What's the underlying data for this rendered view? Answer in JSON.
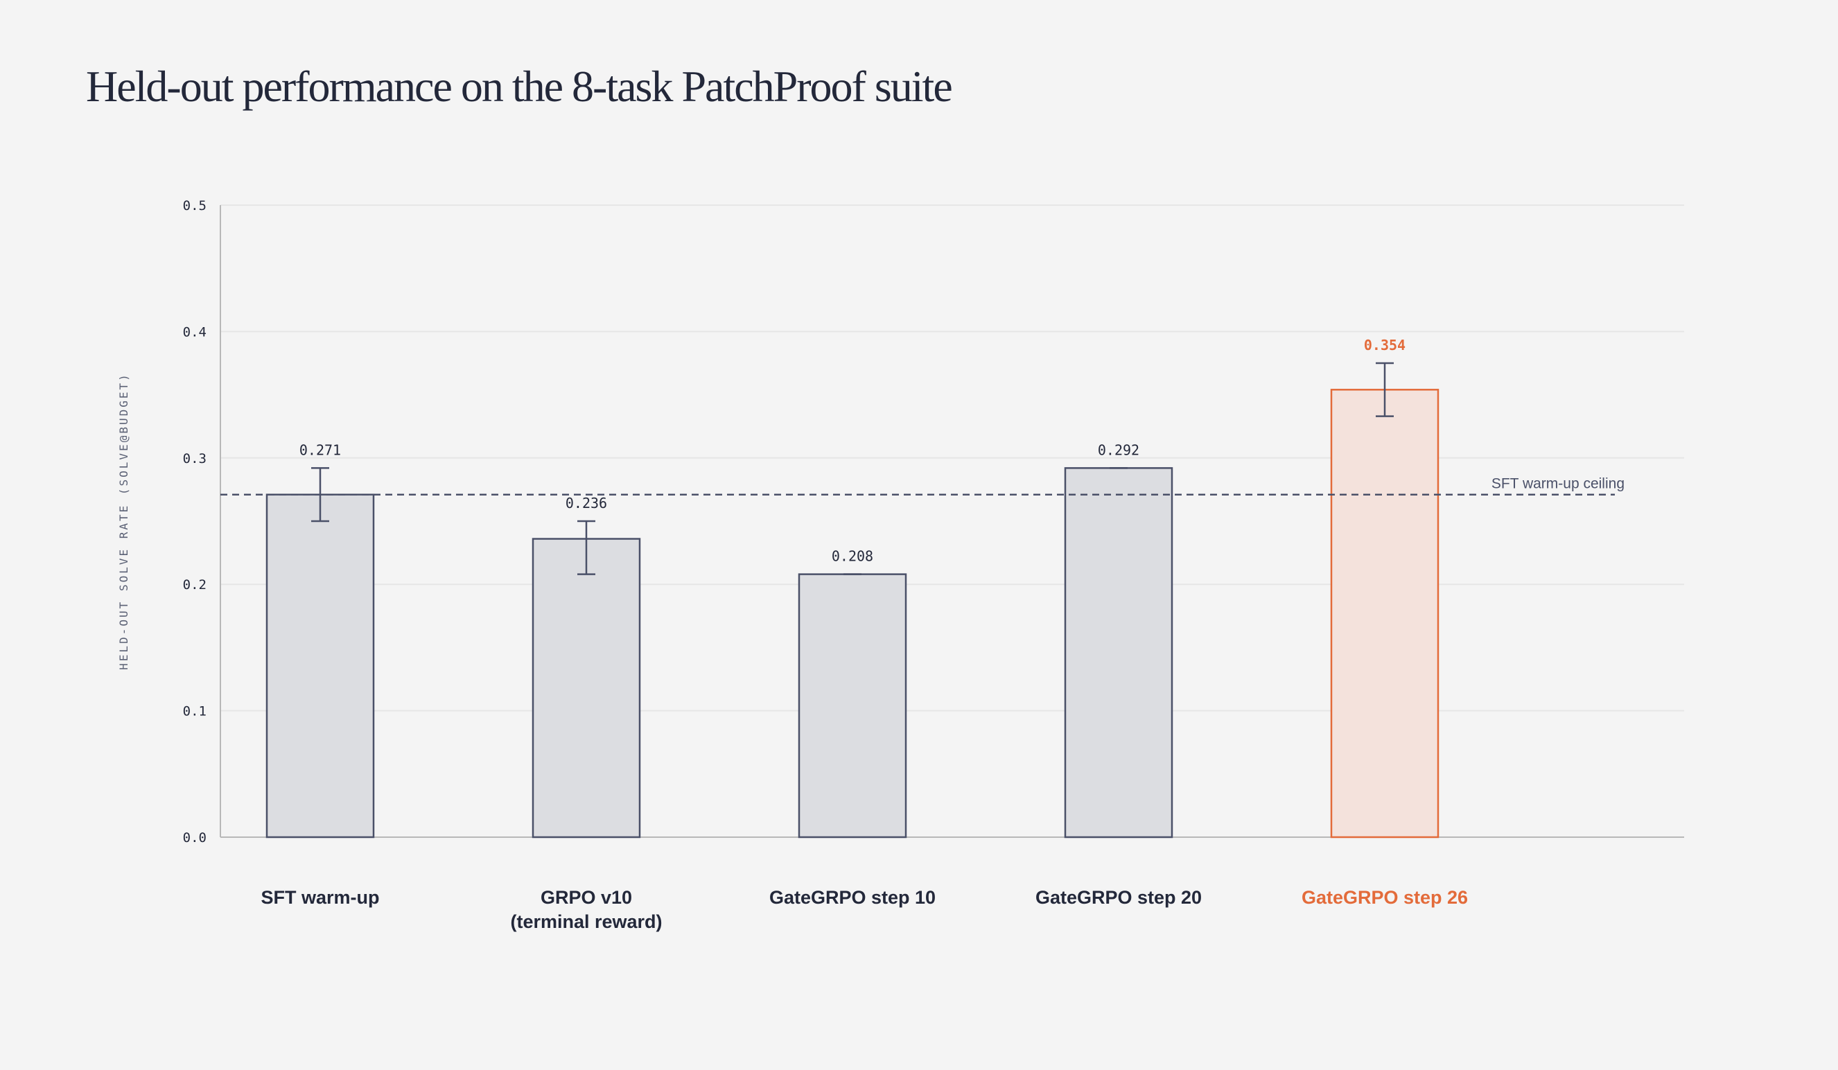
{
  "page": {
    "title": "Held-out performance on the 8-task PatchProof suite"
  },
  "colors": {
    "background": "#f4f4f4",
    "text": "#23283a",
    "bar_fill": "#dcdde1",
    "bar_stroke": "#4a5068",
    "highlight": "#e36b3a",
    "highlight_fill": "#f4e2dc",
    "grid": "#e6e6e6",
    "axis": "#b8b8b8",
    "reference_line": "#4a5068"
  },
  "chart_data": {
    "type": "bar",
    "title": "Held-out performance on the 8-task PatchProof suite",
    "xlabel": "",
    "ylabel": "HELD-OUT SOLVE RATE (SOLVE@BUDGET)",
    "ylim": [
      0,
      0.5
    ],
    "yticks": [
      "0.0",
      "0.1",
      "0.2",
      "0.3",
      "0.4",
      "0.5"
    ],
    "grid": true,
    "categories": [
      [
        "SFT warm-up"
      ],
      [
        "GRPO v10",
        "(terminal reward)"
      ],
      [
        "GateGRPO step 10"
      ],
      [
        "GateGRPO step 20"
      ],
      [
        "GateGRPO step 26"
      ]
    ],
    "values": [
      0.271,
      0.236,
      0.208,
      0.292,
      0.354
    ],
    "value_labels": [
      "0.271",
      "0.236",
      "0.208",
      "0.292",
      "0.354"
    ],
    "error_low": [
      0.25,
      0.208,
      0.208,
      0.292,
      0.333
    ],
    "error_high": [
      0.292,
      0.25,
      0.208,
      0.292,
      0.375
    ],
    "highlight_index": 4,
    "reference_line": {
      "value": 0.271,
      "label": "SFT warm-up ceiling",
      "style": "dashed"
    }
  }
}
